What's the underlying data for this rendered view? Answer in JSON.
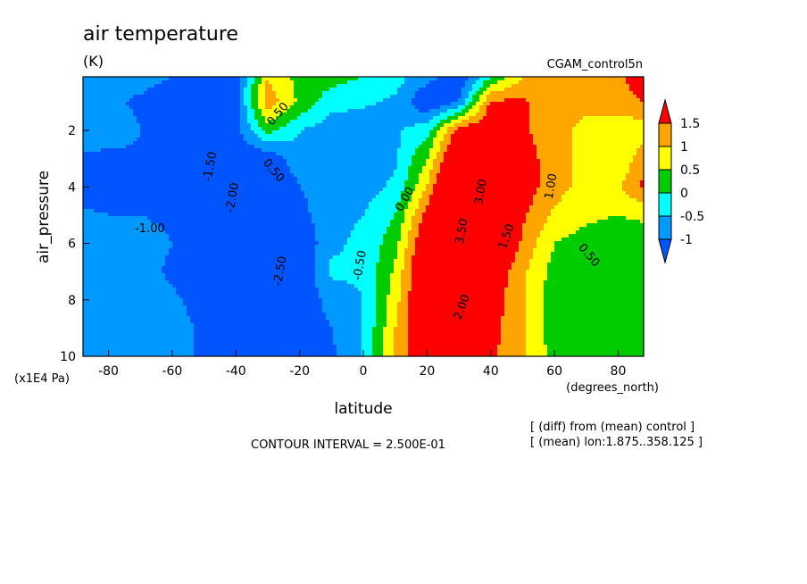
{
  "chart_data": {
    "type": "heatmap",
    "title": "air temperature",
    "units": "(K)",
    "dataset_label": "CGAM_control5n",
    "xlabel": "latitude",
    "x_units": "(degrees_north)",
    "ylabel": "air_pressure",
    "y_units": "(x1E4 Pa)",
    "xlim": [
      -88,
      88
    ],
    "ylim": [
      0.1,
      10
    ],
    "y_inverted": true,
    "x_ticks": [
      -80,
      -60,
      -40,
      -20,
      0,
      20,
      40,
      60,
      80
    ],
    "y_ticks": [
      2,
      4,
      6,
      8,
      10
    ],
    "contour_interval_text": "CONTOUR INTERVAL = 2.500E-01",
    "notes": [
      "[ (diff) from (mean) control ]",
      "[ (mean) lon:1.875..358.125 ]"
    ],
    "colorbar": {
      "labels": [
        "1.5",
        "1",
        "0.5",
        "0",
        "-0.5",
        "-1"
      ],
      "levels": [
        1.5,
        1.0,
        0.5,
        0.0,
        -0.5,
        -1.0
      ],
      "colors": [
        "#ff0000",
        "#ffa500",
        "#ffff00",
        "#00cc00",
        "#00ffff",
        "#0099ff",
        "#0055ff"
      ]
    },
    "level_colors": [
      {
        "min": 1.5,
        "color": "#ff0000"
      },
      {
        "min": 1.0,
        "color": "#ffa500"
      },
      {
        "min": 0.5,
        "color": "#ffff00"
      },
      {
        "min": 0.0,
        "color": "#00cc00"
      },
      {
        "min": -0.5,
        "color": "#00ffff"
      },
      {
        "min": -1.0,
        "color": "#0099ff"
      },
      {
        "min": -99,
        "color": "#0055ff"
      }
    ],
    "approx_field": {
      "lat": [
        -88,
        -80,
        -70,
        -60,
        -50,
        -40,
        -30,
        -20,
        -10,
        0,
        10,
        20,
        30,
        40,
        50,
        60,
        70,
        80,
        88
      ],
      "pressure": [
        0.1,
        1,
        2,
        3,
        4,
        5,
        6,
        7,
        8,
        9,
        10
      ],
      "values": [
        [
          -0.6,
          -0.7,
          -0.8,
          -1.0,
          -1.1,
          -1.2,
          1.0,
          0.3,
          0.2,
          0.0,
          -0.3,
          -0.8,
          -1.5,
          0.0,
          1.0,
          1.1,
          1.2,
          1.4,
          1.8
        ],
        [
          -0.8,
          -0.9,
          -1.1,
          -1.3,
          -1.3,
          -1.2,
          1.3,
          0.4,
          -0.3,
          -0.4,
          -0.6,
          -1.5,
          -1.0,
          1.6,
          1.6,
          1.2,
          1.2,
          1.3,
          1.5
        ],
        [
          -0.6,
          -0.6,
          -1.0,
          -1.2,
          -1.3,
          -1.2,
          0.2,
          -0.5,
          -0.8,
          -0.9,
          -0.6,
          -0.2,
          1.8,
          2.0,
          1.6,
          1.2,
          0.8,
          0.6,
          0.7
        ],
        [
          -1.1,
          -1.2,
          -1.1,
          -1.2,
          -1.4,
          -1.5,
          -1.4,
          -0.6,
          -0.9,
          -0.7,
          -0.6,
          0.5,
          2.5,
          2.5,
          1.7,
          1.3,
          0.8,
          0.6,
          1.3
        ],
        [
          -1.4,
          -1.2,
          -1.1,
          -1.1,
          -1.4,
          -1.8,
          -2.0,
          -1.0,
          -0.7,
          -0.7,
          -0.4,
          1.0,
          3.4,
          2.8,
          1.8,
          1.2,
          0.8,
          0.9,
          1.6
        ],
        [
          -0.9,
          -1.0,
          -1.0,
          -1.1,
          -1.5,
          -2.0,
          -2.2,
          -1.2,
          -0.6,
          -0.5,
          0.0,
          1.7,
          3.7,
          3.0,
          1.6,
          0.9,
          0.6,
          0.5,
          0.6
        ],
        [
          -0.8,
          -0.8,
          -0.8,
          -1.0,
          -1.5,
          -2.1,
          -2.5,
          -1.5,
          -0.6,
          -0.4,
          0.3,
          2.2,
          3.5,
          2.5,
          1.4,
          0.5,
          0.3,
          0.2,
          0.2
        ],
        [
          -0.6,
          -0.6,
          -0.8,
          -1.1,
          -1.4,
          -2.0,
          -2.4,
          -1.5,
          -0.4,
          -0.4,
          0.6,
          2.4,
          3.0,
          2.0,
          1.1,
          0.3,
          0.2,
          0.1,
          0.1
        ],
        [
          -0.6,
          -0.6,
          -0.7,
          -0.9,
          -1.2,
          -1.8,
          -2.1,
          -1.4,
          -0.8,
          -0.5,
          0.8,
          2.4,
          2.3,
          1.8,
          1.1,
          0.2,
          0.1,
          0.1,
          0.1
        ],
        [
          -0.6,
          -0.6,
          -0.7,
          -0.8,
          -1.1,
          -1.6,
          -1.9,
          -1.4,
          -1.0,
          -0.5,
          1.0,
          2.2,
          2.1,
          1.7,
          1.1,
          0.2,
          0.1,
          0.1,
          0.1
        ],
        [
          -0.6,
          -0.6,
          -0.7,
          -0.8,
          -1.1,
          -1.6,
          -1.9,
          -1.4,
          -1.1,
          -0.5,
          1.1,
          2.1,
          2.0,
          1.6,
          1.1,
          0.3,
          0.1,
          0.1,
          0.1
        ]
      ]
    },
    "contour_labels": [
      {
        "text": "0.50",
        "lat": -26,
        "p": 1.5,
        "rot": -50
      },
      {
        "text": "-1.50",
        "lat": -47,
        "p": 3.3,
        "rot": -80
      },
      {
        "text": "-2.00",
        "lat": -40,
        "p": 4.4,
        "rot": -80
      },
      {
        "text": "-1.00",
        "lat": -67,
        "p": 5.6,
        "rot": 0
      },
      {
        "text": "-2.50",
        "lat": -25,
        "p": 7.0,
        "rot": -80
      },
      {
        "text": "-0.50",
        "lat": 0,
        "p": 6.8,
        "rot": -80
      },
      {
        "text": "0.50",
        "lat": -29,
        "p": 3.5,
        "rot": 50
      },
      {
        "text": "0.00",
        "lat": 14,
        "p": 4.5,
        "rot": -60
      },
      {
        "text": "3.00",
        "lat": 38,
        "p": 4.2,
        "rot": -80
      },
      {
        "text": "3.50",
        "lat": 32,
        "p": 5.6,
        "rot": -80
      },
      {
        "text": "2.00",
        "lat": 32,
        "p": 8.3,
        "rot": -70
      },
      {
        "text": "1.50",
        "lat": 46,
        "p": 5.8,
        "rot": -70
      },
      {
        "text": "1.00",
        "lat": 60,
        "p": 4.0,
        "rot": -80
      },
      {
        "text": "0.50",
        "lat": 70,
        "p": 6.5,
        "rot": 50
      }
    ]
  }
}
